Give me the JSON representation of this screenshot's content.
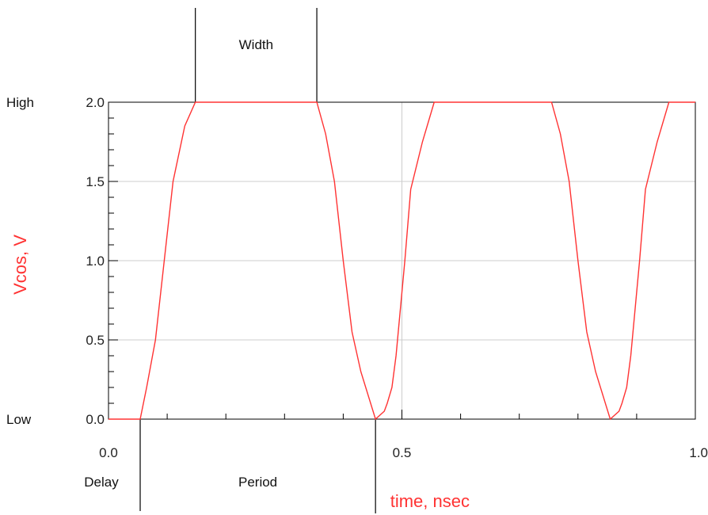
{
  "chart_data": {
    "type": "line",
    "title": "",
    "xlabel": "time, nsec",
    "ylabel": "Vcos, V",
    "xlim": [
      0.0,
      1.0
    ],
    "ylim": [
      0.0,
      2.0
    ],
    "x_ticks": [
      "0.0",
      "0.5",
      "1.0"
    ],
    "y_ticks": [
      "0.0",
      "0.5",
      "1.0",
      "1.5",
      "2.0"
    ],
    "grid": true,
    "series": [
      {
        "x": [
          0.0,
          0.054,
          0.065,
          0.08,
          0.095,
          0.11,
          0.13,
          0.148,
          0.355,
          0.37,
          0.385,
          0.4,
          0.415,
          0.43,
          0.455,
          0.47,
          0.475,
          0.483,
          0.49,
          0.505,
          0.515,
          0.535,
          0.555,
          0.755,
          0.77,
          0.785,
          0.8,
          0.815,
          0.83,
          0.855,
          0.87,
          0.875,
          0.883,
          0.89,
          0.905,
          0.915,
          0.935,
          0.955,
          1.0
        ],
        "y": [
          0.0,
          0.0,
          0.2,
          0.5,
          1.0,
          1.5,
          1.85,
          2.0,
          2.0,
          1.8,
          1.5,
          1.0,
          0.55,
          0.3,
          0.0,
          0.05,
          0.1,
          0.2,
          0.4,
          1.0,
          1.45,
          1.75,
          2.0,
          2.0,
          1.8,
          1.5,
          1.0,
          0.55,
          0.3,
          0.0,
          0.05,
          0.1,
          0.2,
          0.4,
          1.0,
          1.45,
          1.75,
          2.0,
          2.0
        ]
      }
    ],
    "annotations": {
      "high_label": "High",
      "low_label": "Low",
      "width_label": "Width",
      "delay_label": "Delay",
      "period_label": "Period",
      "delay_x": 0.054,
      "width_start_x": 0.148,
      "width_end_x": 0.355,
      "period_end_x": 0.455
    },
    "colors": {
      "series": "#ff3333",
      "axis_title": "#ff3333",
      "grid": "#cccccc",
      "axes": "#000000"
    }
  }
}
